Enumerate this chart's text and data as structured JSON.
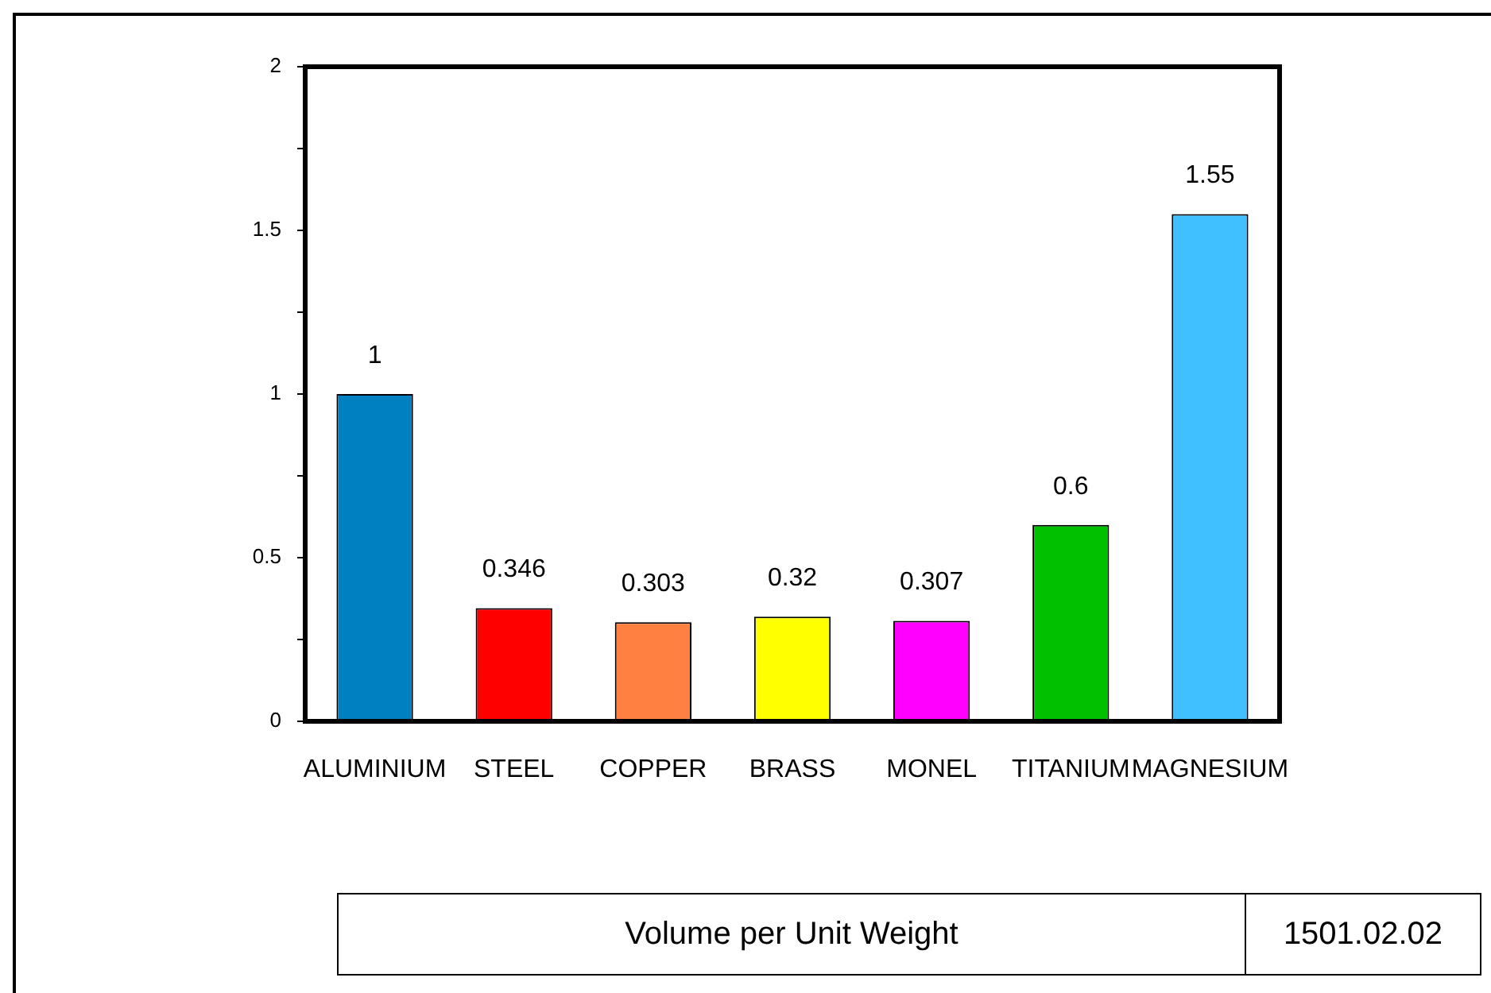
{
  "chart_data": {
    "type": "bar",
    "title": "Volume per Unit Weight",
    "categories": [
      "ALUMINIUM",
      "STEEL",
      "COPPER",
      "BRASS",
      "MONEL",
      "TITANIUM",
      "MAGNESIUM"
    ],
    "values": [
      1,
      0.346,
      0.303,
      0.32,
      0.307,
      0.6,
      1.55
    ],
    "colors": [
      "#0080c0",
      "#ff0000",
      "#ff8040",
      "#ffff00",
      "#ff00ff",
      "#00c000",
      "#40c0ff"
    ],
    "ylim": [
      0,
      2
    ],
    "yticks": [
      0,
      {
        "value": 0.25,
        "label": null
      },
      0.5,
      {
        "value": 0.75,
        "label": null
      },
      1,
      {
        "value": 1.25,
        "label": null
      },
      1.5,
      {
        "value": 1.75,
        "label": null
      },
      2
    ],
    "grid": false,
    "data_labels": true,
    "annotations": [
      "1501.02.02"
    ]
  }
}
